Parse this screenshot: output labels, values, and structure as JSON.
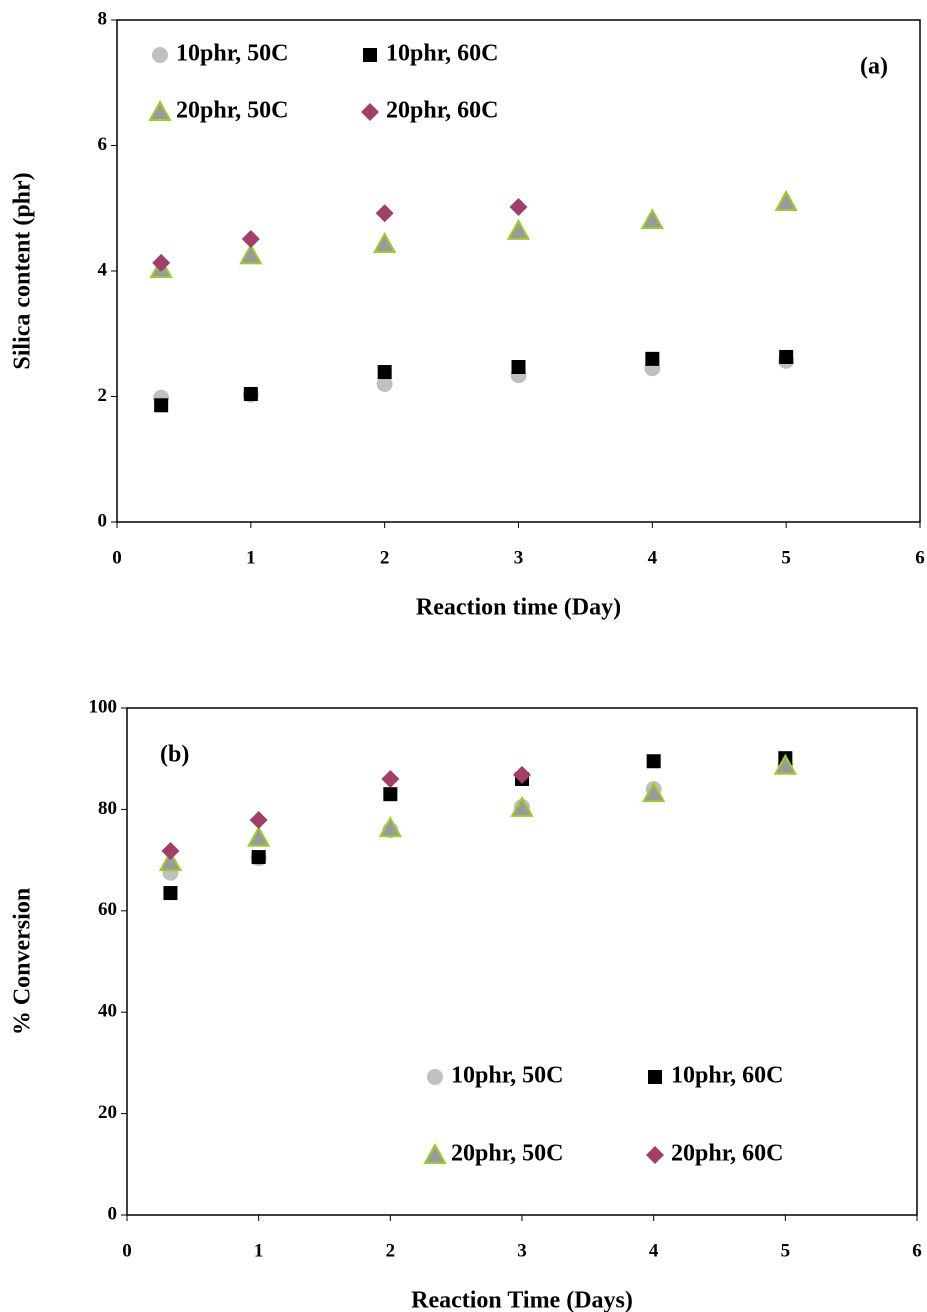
{
  "chart_data": [
    {
      "type": "scatter",
      "annotation": "(a)",
      "x_label": "Reaction time (Day)",
      "y_label": "Silica content (phr)",
      "xlim": [
        0,
        6
      ],
      "xticks": [
        0,
        1,
        2,
        3,
        4,
        5,
        6
      ],
      "ylim": [
        0,
        8
      ],
      "yticks": [
        0,
        2,
        4,
        6,
        8
      ],
      "legend": "top-left",
      "series": [
        {
          "name": "10phr, 50C",
          "color": "#c0c0c0",
          "marker": "circle",
          "x": [
            0.33,
            1,
            2,
            3,
            4,
            5
          ],
          "values": [
            1.98,
            2.03,
            2.2,
            2.34,
            2.45,
            2.57
          ]
        },
        {
          "name": "10phr, 60C",
          "color": "#000000",
          "marker": "square",
          "x": [
            0.33,
            1,
            2,
            3,
            4,
            5
          ],
          "values": [
            1.86,
            2.04,
            2.39,
            2.47,
            2.6,
            2.63
          ]
        },
        {
          "name": "20phr, 50C",
          "color": "#9a9a9a",
          "marker": "triangle",
          "x": [
            0.33,
            1,
            2,
            3,
            4,
            5
          ],
          "values": [
            4.03,
            4.25,
            4.43,
            4.64,
            4.81,
            5.1
          ]
        },
        {
          "name": "20phr, 60C",
          "color": "#a0406a",
          "marker": "diamond",
          "x": [
            0.33,
            1,
            2,
            3
          ],
          "values": [
            4.13,
            4.51,
            4.92,
            5.02
          ]
        }
      ]
    },
    {
      "type": "scatter",
      "annotation": "(b)",
      "x_label": "Reaction Time (Days)",
      "y_label": "% Conversion",
      "xlim": [
        0,
        6
      ],
      "xticks": [
        0,
        1,
        2,
        3,
        4,
        5,
        6
      ],
      "ylim": [
        0,
        100
      ],
      "yticks": [
        0,
        20,
        40,
        60,
        80,
        100
      ],
      "legend": "bottom-right",
      "series": [
        {
          "name": "10phr, 50C",
          "color": "#c0c0c0",
          "marker": "circle",
          "x": [
            0.33,
            1,
            2,
            3,
            4,
            5
          ],
          "values": [
            67.5,
            70.4,
            75.9,
            80.5,
            84,
            88.6
          ]
        },
        {
          "name": "10phr, 60C",
          "color": "#000000",
          "marker": "square",
          "x": [
            0.33,
            1,
            2,
            3,
            4,
            5
          ],
          "values": [
            63.5,
            70.6,
            83,
            86,
            89.5,
            90.1
          ]
        },
        {
          "name": "20phr, 50C",
          "color": "#9a9a9a",
          "marker": "triangle",
          "x": [
            0.33,
            1,
            2,
            3,
            4,
            5
          ],
          "values": [
            69.6,
            74.4,
            76.3,
            80.3,
            83.2,
            88.6
          ]
        },
        {
          "name": "20phr, 60C",
          "color": "#a0406a",
          "marker": "diamond",
          "x": [
            0.33,
            1,
            2,
            3
          ],
          "values": [
            71.8,
            77.9,
            86,
            86.8
          ]
        }
      ]
    }
  ]
}
